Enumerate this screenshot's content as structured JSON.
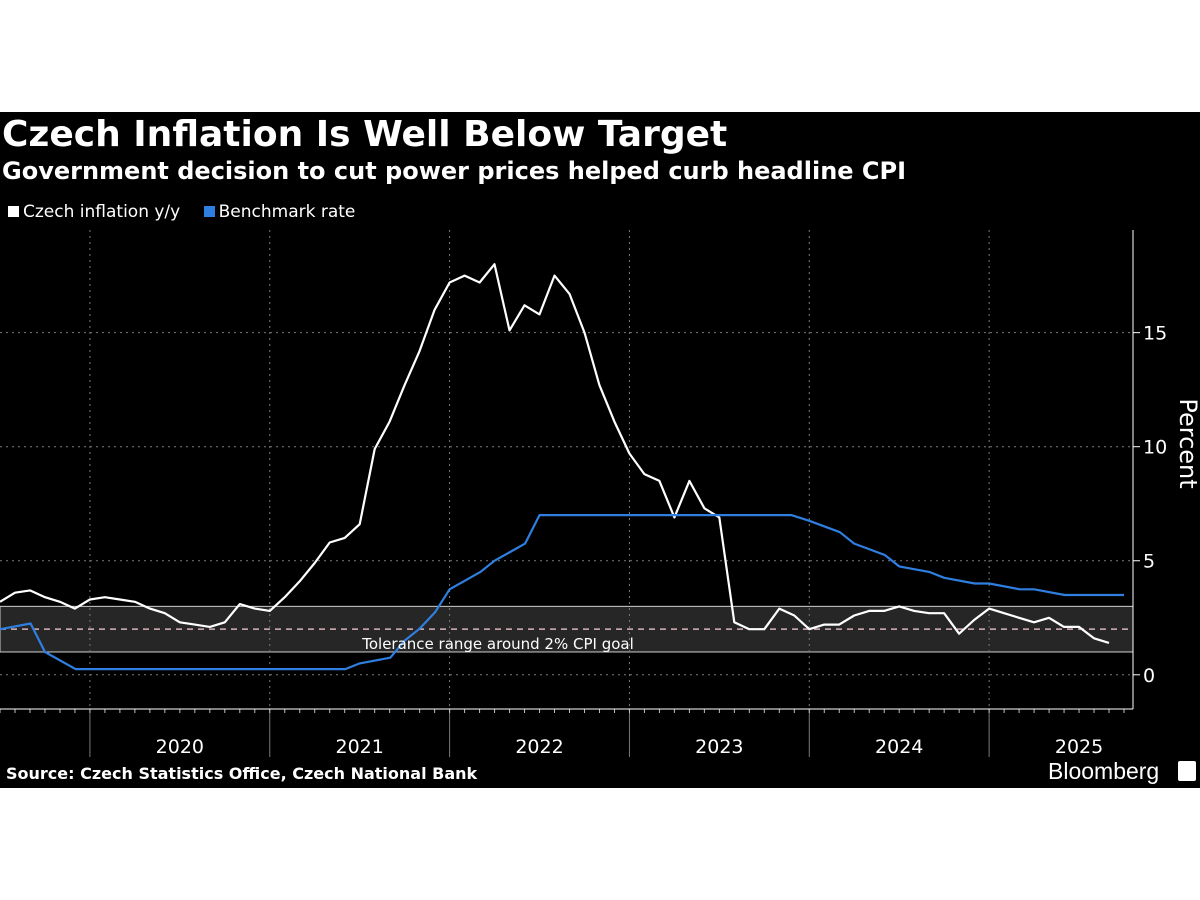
{
  "chart_data": {
    "type": "line",
    "title": "Czech Inflation Is Well Below Target",
    "subtitle": "Government decision to cut power prices helped curb headline CPI",
    "ylabel": "Percent",
    "ylim": [
      -1.5,
      19.5
    ],
    "yticks": [
      0,
      5,
      10,
      15
    ],
    "xlim": [
      2019.5,
      2025.8
    ],
    "year_labels": [
      "2020",
      "2021",
      "2022",
      "2023",
      "2024",
      "2025"
    ],
    "tolerance_band": {
      "low": 1,
      "high": 3,
      "target": 2,
      "label": "Tolerance range around 2% CPI goal"
    },
    "series": [
      {
        "name": "Czech inflation y/y",
        "color": "#ffffff",
        "start": 2019.5,
        "step": 0.08333,
        "values": [
          3.2,
          3.6,
          3.7,
          3.4,
          3.2,
          2.9,
          3.3,
          3.4,
          3.3,
          3.2,
          2.9,
          2.7,
          2.3,
          2.2,
          2.1,
          2.3,
          3.1,
          2.9,
          2.8,
          3.4,
          4.1,
          4.9,
          5.8,
          6.0,
          6.6,
          9.9,
          11.1,
          12.7,
          14.2,
          16.0,
          17.2,
          17.5,
          17.2,
          18.0,
          15.1,
          16.2,
          15.8,
          17.5,
          16.7,
          15.0,
          12.7,
          11.1,
          9.7,
          8.8,
          8.5,
          6.9,
          8.5,
          7.3,
          6.9,
          2.3,
          2.0,
          2.0,
          2.9,
          2.6,
          2.0,
          2.2,
          2.2,
          2.6,
          2.8,
          2.8,
          3.0,
          2.8,
          2.7,
          2.7,
          1.8,
          2.4,
          2.9,
          2.7,
          2.5,
          2.3,
          2.5,
          2.1,
          2.1,
          1.6,
          1.4
        ]
      },
      {
        "name": "Benchmark rate",
        "color": "#2f7fe0",
        "points": [
          [
            2019.5,
            2.0
          ],
          [
            2019.67,
            2.25
          ],
          [
            2019.75,
            1.0
          ],
          [
            2019.92,
            0.25
          ],
          [
            2020.92,
            0.25
          ],
          [
            2021.42,
            0.25
          ],
          [
            2021.5,
            0.5
          ],
          [
            2021.67,
            0.75
          ],
          [
            2021.75,
            1.5
          ],
          [
            2021.83,
            2.0
          ],
          [
            2021.92,
            2.75
          ],
          [
            2022.0,
            3.75
          ],
          [
            2022.17,
            4.5
          ],
          [
            2022.25,
            5.0
          ],
          [
            2022.42,
            5.75
          ],
          [
            2022.5,
            7.0
          ],
          [
            2023.9,
            7.0
          ],
          [
            2024.0,
            6.75
          ],
          [
            2024.17,
            6.25
          ],
          [
            2024.25,
            5.75
          ],
          [
            2024.42,
            5.25
          ],
          [
            2024.5,
            4.75
          ],
          [
            2024.67,
            4.5
          ],
          [
            2024.75,
            4.25
          ],
          [
            2024.92,
            4.0
          ],
          [
            2025.0,
            4.0
          ],
          [
            2025.17,
            3.75
          ],
          [
            2025.25,
            3.75
          ],
          [
            2025.42,
            3.5
          ],
          [
            2025.75,
            3.5
          ]
        ]
      }
    ]
  },
  "source": "Source: Czech Statistics Office, Czech National Bank",
  "branding": "Bloomberg",
  "colors": {
    "background": "#000000",
    "band": "#262626",
    "grid": "#7a7a7a",
    "target_line": "#d8b4b8"
  }
}
